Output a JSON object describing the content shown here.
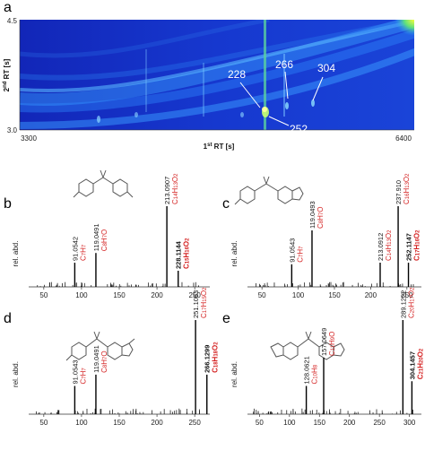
{
  "heatmap": {
    "letter": "a",
    "y_ticks": [
      "4.5",
      "3.0"
    ],
    "x_ticks": [
      "3300",
      "6400"
    ],
    "x_label": "1st RT [s]",
    "x_label_parts": {
      "pre": "1",
      "sup": "st",
      "post": " RT [s]"
    },
    "y_label": "2nd RT [s]",
    "y_label_parts": {
      "pre": "2",
      "sup": "nd",
      "post": " RT [s]"
    },
    "annotations": [
      "228",
      "266",
      "304",
      "252"
    ],
    "colors": {
      "background": "#1432c8",
      "band": "#2ea7ff",
      "hot": "#f4f428"
    }
  },
  "chart_data": [
    {
      "type": "bar",
      "panel": "b",
      "ylabel": "rel. abd.",
      "xlim": [
        30,
        270
      ],
      "x_ticks": [
        50,
        100,
        150,
        200,
        250
      ],
      "peaks": [
        {
          "mz": 91.0542,
          "rel": 0.3,
          "label": "91.0542",
          "formula": "C7H7"
        },
        {
          "mz": 119.0491,
          "rel": 0.42,
          "label": "119.0491",
          "formula": "C8H7O"
        },
        {
          "mz": 213.0907,
          "rel": 1.0,
          "label": "213.0907",
          "formula": "C14H13O2"
        },
        {
          "mz": 228.1144,
          "rel": 0.2,
          "label": "228.1144",
          "formula": "C15H16O2",
          "bold": true
        }
      ],
      "structure": "bisphenol A (two phenol rings linked by isopropylidene)"
    },
    {
      "type": "bar",
      "panel": "c",
      "ylabel": "rel. abd.",
      "xlim": [
        30,
        270
      ],
      "x_ticks": [
        50,
        100,
        150,
        200,
        250
      ],
      "peaks": [
        {
          "mz": 91.0543,
          "rel": 0.28,
          "label": "91.0543",
          "formula": "C7H7"
        },
        {
          "mz": 119.0493,
          "rel": 0.7,
          "label": "119.0493",
          "formula": "C8H7O"
        },
        {
          "mz": 213.0912,
          "rel": 0.3,
          "label": "213.0912",
          "formula": "C14H13O2"
        },
        {
          "mz": 237.91,
          "rel": 1.0,
          "label": "237.910",
          "formula": "C16H13O2"
        },
        {
          "mz": 252.1147,
          "rel": 0.3,
          "label": "252.1147",
          "formula": "C17H16O2",
          "bold": true
        }
      ],
      "structure": "phenol ring linked to benzofuran"
    },
    {
      "type": "bar",
      "panel": "d",
      "ylabel": "rel. abd.",
      "xlim": [
        30,
        270
      ],
      "x_ticks": [
        50,
        100,
        150,
        200,
        250
      ],
      "peaks": [
        {
          "mz": 91.0543,
          "rel": 0.3,
          "label": "91.0543",
          "formula": "C7H7"
        },
        {
          "mz": 119.0491,
          "rel": 0.42,
          "label": "119.0491",
          "formula": "C8H7O"
        },
        {
          "mz": 251.1063,
          "rel": 1.0,
          "label": "251.1063",
          "formula": "C17H15O2"
        },
        {
          "mz": 266.1299,
          "rel": 0.42,
          "label": "266.1299",
          "formula": "C18H18O2",
          "bold": true
        }
      ],
      "structure": "phenol ring linked to methylbenzofuran"
    },
    {
      "type": "bar",
      "panel": "e",
      "ylabel": "rel. abd.",
      "xlim": [
        30,
        320
      ],
      "x_ticks": [
        50,
        100,
        150,
        200,
        250,
        300
      ],
      "peaks": [
        {
          "mz": 128.0621,
          "rel": 0.3,
          "label": "128.0621",
          "formula": "C10H8"
        },
        {
          "mz": 157.0649,
          "rel": 0.6,
          "label": "157.0649",
          "formula": "C11H9O"
        },
        {
          "mz": 289.1222,
          "rel": 1.0,
          "label": "289.1222",
          "formula": "C20H17O2"
        },
        {
          "mz": 304.1457,
          "rel": 0.35,
          "label": "304.1457",
          "formula": "C21H20O2",
          "bold": true
        }
      ],
      "structure": "two methylbenzofuran units linked by isopropylidene"
    }
  ]
}
